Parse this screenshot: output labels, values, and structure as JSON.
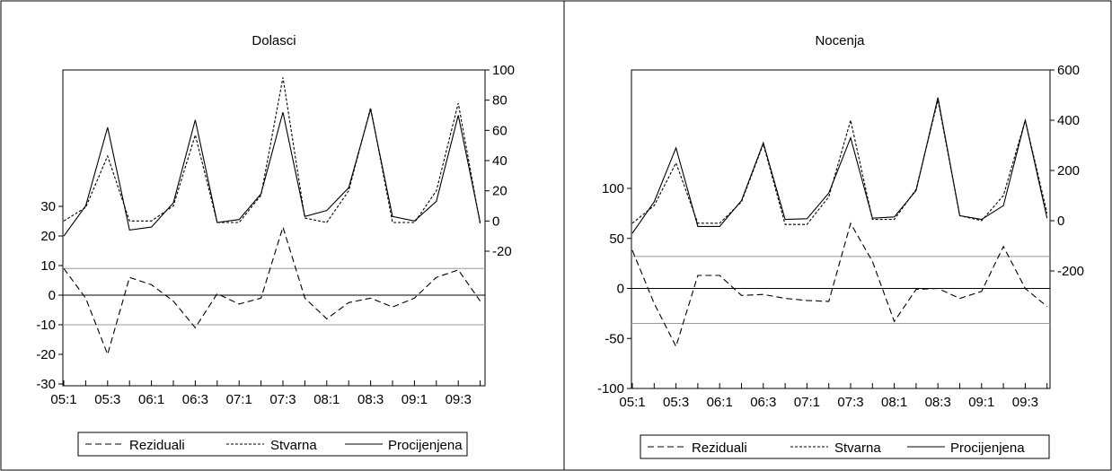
{
  "chart_data": [
    {
      "type": "line",
      "title": "Dolasci",
      "x_tick_labels": [
        "05:1",
        "05:3",
        "06:1",
        "06:3",
        "07:1",
        "07:3",
        "08:1",
        "08:3",
        "09:1",
        "09:3"
      ],
      "x": [
        "05:1",
        "05:2",
        "05:3",
        "05:4",
        "06:1",
        "06:2",
        "06:3",
        "06:4",
        "07:1",
        "07:2",
        "07:3",
        "07:4",
        "08:1",
        "08:2",
        "08:3",
        "08:4",
        "09:1",
        "09:2",
        "09:3",
        "09:4"
      ],
      "left_axis": {
        "ticks": [
          "30",
          "20",
          "10",
          "0",
          "-10",
          "-20",
          "-30"
        ],
        "ylim": [
          -30,
          30
        ]
      },
      "right_axis": {
        "ticks": [
          "100",
          "80",
          "60",
          "40",
          "20",
          "0",
          "-20"
        ],
        "ylim": [
          -30,
          100
        ]
      },
      "residual_band": [
        -10,
        9
      ],
      "series": [
        {
          "name": "Reziduali",
          "axis": "left",
          "style": "dashed",
          "values": [
            9,
            -1,
            -20,
            6,
            3.5,
            -2,
            -11,
            0.5,
            -3,
            -1,
            23,
            -1,
            -8,
            -2.5,
            -1,
            -4,
            -1,
            6,
            8.5,
            -2
          ]
        },
        {
          "name": "Stvarna",
          "axis": "right",
          "style": "dotted",
          "values": [
            0,
            9,
            43,
            0,
            0,
            10,
            57,
            -1,
            -1,
            17,
            95,
            2,
            -1,
            20,
            75,
            -1,
            -1,
            20,
            78,
            -2
          ]
        },
        {
          "name": "Procijenjena",
          "axis": "right",
          "style": "solid",
          "values": [
            -10,
            10,
            62,
            -6,
            -4,
            12,
            67,
            -1,
            1,
            18,
            72,
            3,
            7,
            22,
            74,
            3,
            0,
            13,
            70,
            -1
          ]
        }
      ],
      "legend": {
        "placement": "bottom",
        "items": [
          "Reziduali",
          "Stvarna",
          "Procijenjena"
        ]
      }
    },
    {
      "type": "line",
      "title": "Nocenja",
      "x_tick_labels": [
        "05:1",
        "05:3",
        "06:1",
        "06:3",
        "07:1",
        "07:3",
        "08:1",
        "08:3",
        "09:1",
        "09:3"
      ],
      "x": [
        "05:1",
        "05:2",
        "05:3",
        "05:4",
        "06:1",
        "06:2",
        "06:3",
        "06:4",
        "07:1",
        "07:2",
        "07:3",
        "07:4",
        "08:1",
        "08:2",
        "08:3",
        "08:4",
        "09:1",
        "09:2",
        "09:3",
        "09:4"
      ],
      "left_axis": {
        "ticks": [
          "100",
          "50",
          "0",
          "-50",
          "-100"
        ],
        "ylim": [
          -100,
          150
        ]
      },
      "right_axis": {
        "ticks": [
          "600",
          "400",
          "200",
          "0",
          "-200"
        ],
        "ylim": [
          -400,
          600
        ]
      },
      "residual_band": [
        -35,
        32
      ],
      "series": [
        {
          "name": "Reziduali",
          "axis": "left",
          "style": "dashed",
          "values": [
            38,
            -15,
            -58,
            13,
            13,
            -7,
            -6,
            -10,
            -12,
            -13,
            65,
            27,
            -33,
            -1,
            0,
            -10,
            -3,
            42,
            0,
            -18
          ]
        },
        {
          "name": "Stvarna",
          "axis": "right",
          "style": "dotted",
          "values": [
            -10,
            60,
            230,
            -10,
            -10,
            75,
            305,
            -15,
            -15,
            95,
            400,
            5,
            5,
            125,
            480,
            20,
            0,
            100,
            400,
            30
          ]
        },
        {
          "name": "Procijenjena",
          "axis": "right",
          "style": "solid",
          "values": [
            -50,
            75,
            290,
            -23,
            -23,
            80,
            310,
            5,
            8,
            110,
            330,
            10,
            15,
            120,
            490,
            20,
            5,
            60,
            400,
            10
          ]
        }
      ],
      "legend": {
        "placement": "bottom",
        "items": [
          "Reziduali",
          "Stvarna",
          "Procijenjena"
        ]
      }
    }
  ]
}
